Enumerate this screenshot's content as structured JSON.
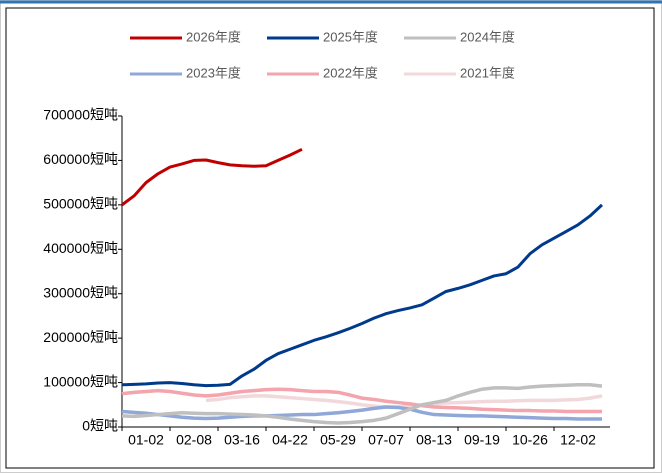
{
  "chart_data": {
    "type": "line",
    "categories": [
      "01-02",
      null,
      null,
      null,
      "02-08",
      null,
      null,
      null,
      "03-16",
      null,
      null,
      null,
      "04-22",
      null,
      null,
      null,
      "05-29",
      null,
      null,
      null,
      "07-07",
      null,
      null,
      null,
      "08-13",
      null,
      null,
      null,
      "09-19",
      null,
      null,
      null,
      "10-26",
      null,
      null,
      null,
      "12-02",
      null,
      null,
      null,
      null
    ],
    "ylim": [
      0,
      700000
    ],
    "yticks": [
      {
        "value": 0,
        "label": "0短吨"
      },
      {
        "value": 100000,
        "label": "100000短吨"
      },
      {
        "value": 200000,
        "label": "200000短吨"
      },
      {
        "value": 300000,
        "label": "300000短吨"
      },
      {
        "value": 400000,
        "label": "400000短吨"
      },
      {
        "value": 500000,
        "label": "500000短吨"
      },
      {
        "value": 600000,
        "label": "600000短吨"
      },
      {
        "value": 700000,
        "label": "700000短吨"
      }
    ],
    "series": [
      {
        "name": "2026年度",
        "color": "#c00000",
        "values": [
          500000,
          520000,
          550000,
          570000,
          585000,
          592000,
          600000,
          601000,
          595000,
          590000,
          588000,
          587000,
          588000,
          600000,
          612000,
          625000,
          null,
          null,
          null,
          null,
          null,
          null,
          null,
          null,
          null,
          null,
          null,
          null,
          null,
          null,
          null,
          null,
          null,
          null,
          null,
          null,
          null,
          null,
          null,
          null,
          null
        ]
      },
      {
        "name": "2025年度",
        "color": "#003a8c",
        "values": [
          95000,
          96000,
          97000,
          99000,
          100000,
          98000,
          95000,
          93000,
          94000,
          96000,
          115000,
          130000,
          150000,
          165000,
          175000,
          185000,
          195000,
          203000,
          212000,
          222000,
          233000,
          245000,
          255000,
          262000,
          268000,
          275000,
          290000,
          305000,
          312000,
          320000,
          330000,
          340000,
          345000,
          360000,
          390000,
          410000,
          425000,
          440000,
          455000,
          475000,
          500000
        ]
      },
      {
        "name": "2024年度",
        "color": "#bfbfbf",
        "values": [
          25000,
          24000,
          26000,
          28000,
          30000,
          32000,
          31000,
          30000,
          30000,
          29000,
          28000,
          27000,
          25000,
          22000,
          18000,
          15000,
          12000,
          10000,
          9000,
          10000,
          12000,
          15000,
          20000,
          30000,
          40000,
          50000,
          55000,
          60000,
          70000,
          78000,
          85000,
          88000,
          88000,
          87000,
          90000,
          92000,
          93000,
          94000,
          95000,
          95000,
          92000
        ]
      },
      {
        "name": "2023年度",
        "color": "#8fa8d8",
        "values": [
          35000,
          33000,
          31000,
          28000,
          25000,
          22000,
          20000,
          19000,
          20000,
          22000,
          24000,
          25000,
          25000,
          26000,
          27000,
          28000,
          28000,
          30000,
          32000,
          35000,
          38000,
          42000,
          45000,
          44000,
          40000,
          33000,
          28000,
          27000,
          26000,
          25000,
          25000,
          24000,
          23000,
          22000,
          21000,
          20000,
          19000,
          19000,
          18000,
          18000,
          18000
        ]
      },
      {
        "name": "2022年度",
        "color": "#f4a4ac",
        "values": [
          75000,
          78000,
          80000,
          82000,
          80000,
          76000,
          72000,
          70000,
          72000,
          76000,
          80000,
          82000,
          84000,
          85000,
          84000,
          82000,
          80000,
          80000,
          78000,
          72000,
          65000,
          62000,
          58000,
          55000,
          52000,
          48000,
          45000,
          44000,
          43000,
          42000,
          40000,
          39000,
          38000,
          37000,
          37000,
          36000,
          36000,
          35000,
          35000,
          35000,
          35000
        ]
      },
      {
        "name": "2021年度",
        "color": "#f2d8da",
        "values": [
          null,
          null,
          null,
          null,
          null,
          null,
          null,
          60000,
          62000,
          66000,
          68000,
          70000,
          70000,
          68000,
          66000,
          64000,
          62000,
          60000,
          57000,
          54000,
          50000,
          47000,
          45000,
          45000,
          47000,
          50000,
          52000,
          54000,
          55000,
          56000,
          57000,
          58000,
          58000,
          59000,
          60000,
          60000,
          60000,
          61000,
          62000,
          65000,
          70000
        ]
      }
    ]
  }
}
